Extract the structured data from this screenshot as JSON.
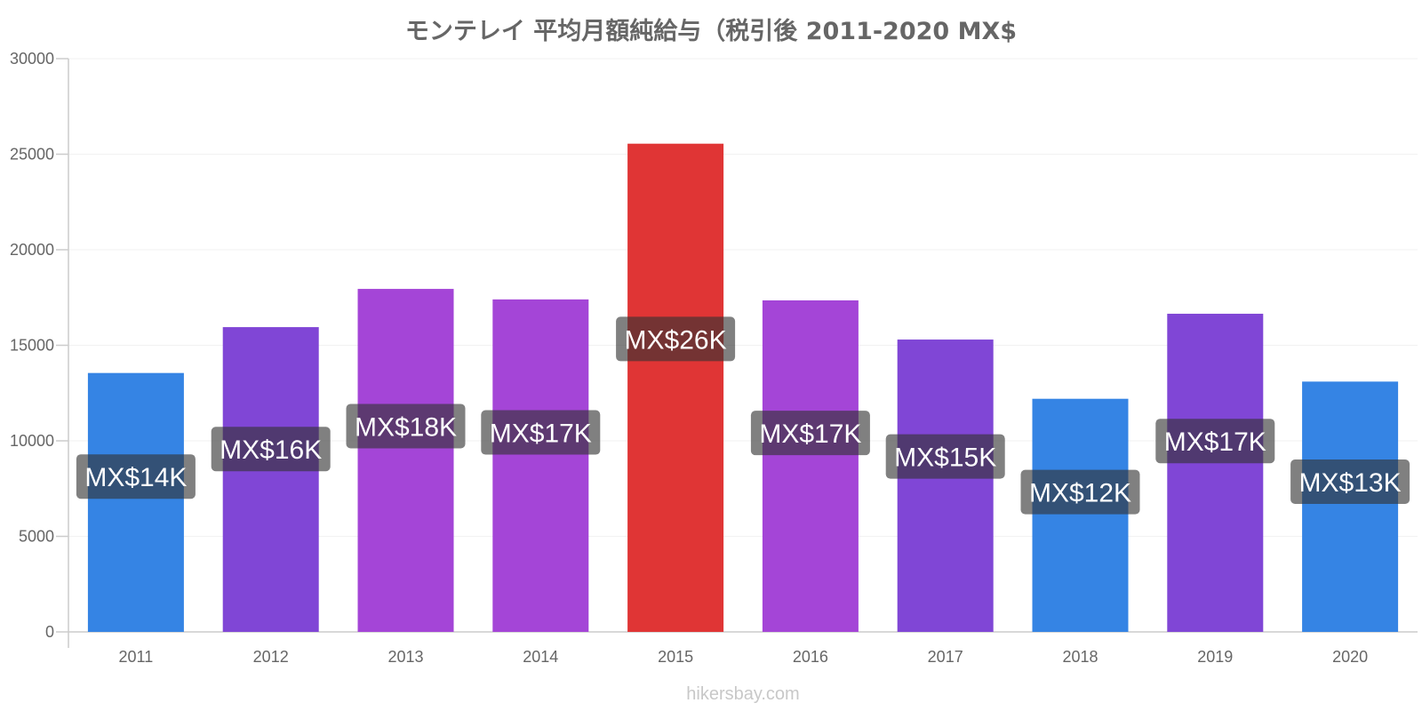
{
  "chart_data": {
    "type": "bar",
    "title": "モンテレイ 平均月額純給与（税引後 2011-2020 MX$",
    "xlabel": "",
    "ylabel": "",
    "ylim": [
      0,
      30000
    ],
    "yticks": [
      "0",
      "5000",
      "10000",
      "15000",
      "20000",
      "25000",
      "30000"
    ],
    "grid": true,
    "categories": [
      "2011",
      "2012",
      "2013",
      "2014",
      "2015",
      "2016",
      "2017",
      "2018",
      "2019",
      "2020"
    ],
    "values": [
      13550,
      15950,
      17950,
      17400,
      25550,
      17350,
      15300,
      12200,
      16650,
      13100
    ],
    "data_labels": [
      "MX$14K",
      "MX$16K",
      "MX$18K",
      "MX$17K",
      "MX$26K",
      "MX$17K",
      "MX$15K",
      "MX$12K",
      "MX$17K",
      "MX$13K"
    ],
    "bar_colors": [
      "#3584e4",
      "#8046d6",
      "#a445d7",
      "#a445d7",
      "#e03535",
      "#a445d7",
      "#8046d6",
      "#3584e4",
      "#8046d6",
      "#3584e4"
    ]
  },
  "watermark": "hikersbay.com"
}
